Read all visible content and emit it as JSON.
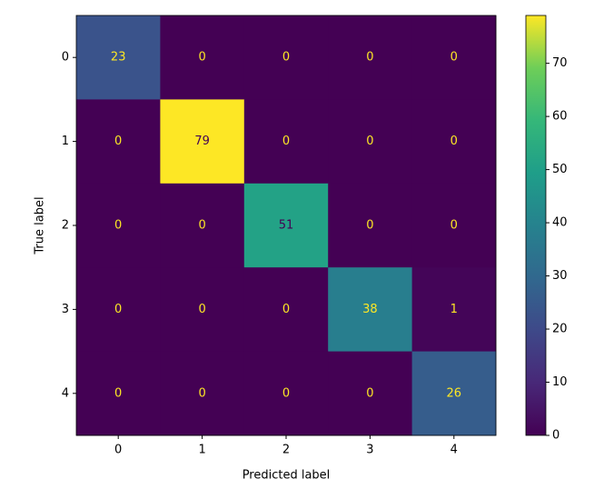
{
  "chart_data": {
    "type": "heatmap",
    "x_label": "Predicted label",
    "y_label": "True label",
    "x_categories": [
      "0",
      "1",
      "2",
      "3",
      "4"
    ],
    "y_categories": [
      "0",
      "1",
      "2",
      "3",
      "4"
    ],
    "values": [
      [
        23,
        0,
        0,
        0,
        0
      ],
      [
        0,
        79,
        0,
        0,
        0
      ],
      [
        0,
        0,
        51,
        0,
        0
      ],
      [
        0,
        0,
        0,
        38,
        1
      ],
      [
        0,
        0,
        0,
        0,
        26
      ]
    ],
    "colormap": "viridis",
    "colorbar_lim": [
      0,
      79
    ],
    "colorbar_ticks": [
      0,
      10,
      20,
      30,
      40,
      50,
      60,
      70
    ]
  }
}
